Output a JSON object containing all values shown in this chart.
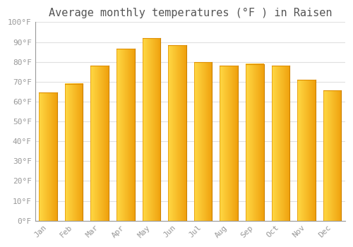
{
  "title": "Average monthly temperatures (°F ) in Raisen",
  "months": [
    "Jan",
    "Feb",
    "Mar",
    "Apr",
    "May",
    "Jun",
    "Jul",
    "Aug",
    "Sep",
    "Oct",
    "Nov",
    "Dec"
  ],
  "values": [
    64.5,
    69,
    78,
    86.5,
    92,
    88.5,
    80,
    78,
    79,
    78,
    71,
    65.5
  ],
  "bar_color_left": "#FFCC44",
  "bar_color_right": "#F0A000",
  "bar_color_mid": "#FDB92E",
  "ylim": [
    0,
    100
  ],
  "yticks": [
    0,
    10,
    20,
    30,
    40,
    50,
    60,
    70,
    80,
    90,
    100
  ],
  "ytick_labels": [
    "0°F",
    "10°F",
    "20°F",
    "30°F",
    "40°F",
    "50°F",
    "60°F",
    "70°F",
    "80°F",
    "90°F",
    "100°F"
  ],
  "background_color": "#ffffff",
  "grid_color": "#e0e0e0",
  "title_fontsize": 11,
  "tick_fontsize": 8,
  "tick_color": "#999999",
  "font_family": "monospace",
  "bar_width": 0.7,
  "figsize": [
    5.0,
    3.5
  ],
  "dpi": 100
}
